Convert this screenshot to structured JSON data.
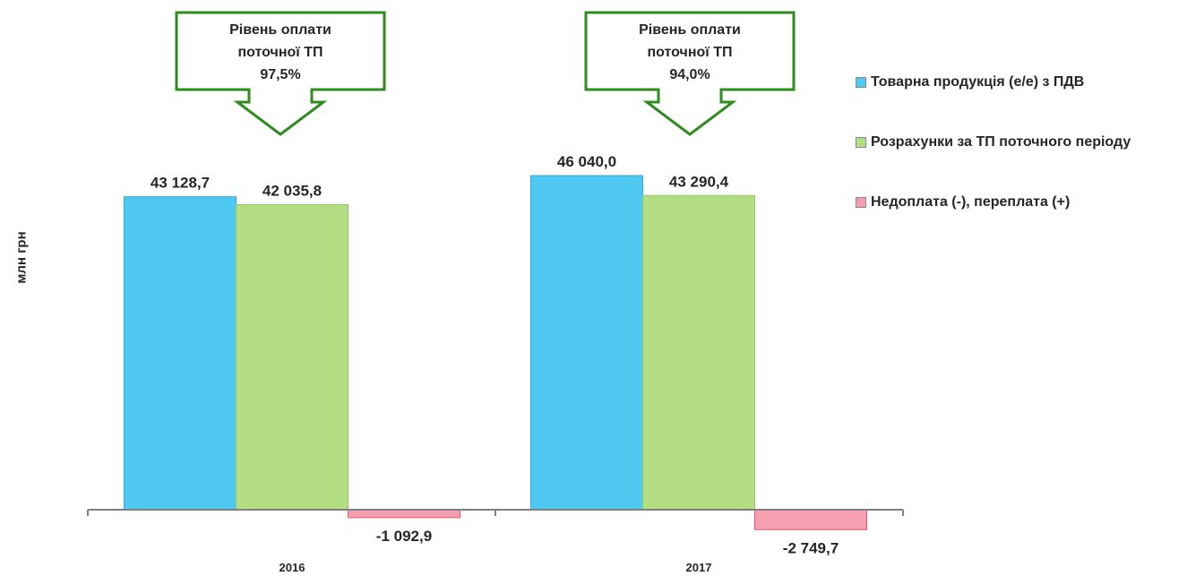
{
  "chart_data": {
    "type": "bar",
    "categories": [
      "2016",
      "2017"
    ],
    "series": [
      {
        "name": "Товарна продукція (е/е) з ПДВ",
        "values": [
          43128.7,
          46040.0
        ],
        "color": "#4FC8F2",
        "labels": [
          "43 128,7",
          "46 040,0"
        ]
      },
      {
        "name": "Розрахунки за ТП поточного періоду",
        "values": [
          42035.8,
          43290.4
        ],
        "color": "#B3DE83",
        "labels": [
          "42 035,8",
          "43 290,4"
        ]
      },
      {
        "name": "Недоплата (-), переплата (+)",
        "values": [
          -1092.9,
          -2749.7
        ],
        "color": "#F59FB0",
        "labels": [
          "-1 092,9",
          "-2 749,7"
        ]
      }
    ],
    "ylabel": "млн грн",
    "xlabel": "",
    "grid": false,
    "legend_position": "right",
    "callouts": [
      {
        "category": "2016",
        "lines": [
          "Рівень оплати",
          "поточної ТП",
          "97,5%"
        ],
        "border_color": "#2E8B1E"
      },
      {
        "category": "2017",
        "lines": [
          "Рівень оплати",
          "поточної ТП",
          "94,0%"
        ],
        "border_color": "#2E8B1E"
      }
    ]
  }
}
